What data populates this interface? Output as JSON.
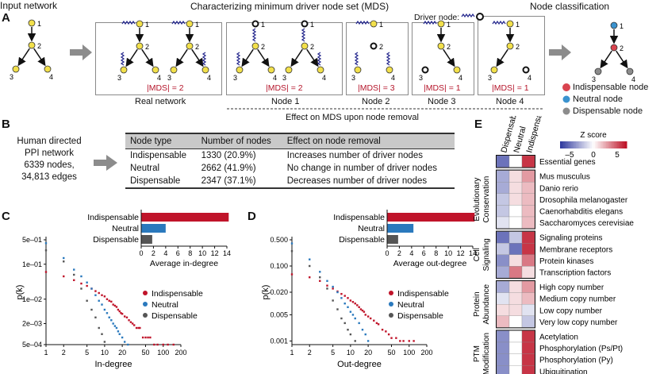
{
  "panel_a": {
    "letter": "A",
    "input_title": "Input network",
    "mds_title": "Characterizing minimum driver node set (MDS)",
    "driver_node_label": "Driver node:",
    "class_title": "Node classification",
    "node_labels": [
      "1",
      "2",
      "3",
      "4"
    ],
    "real_mds": "|MDS| = 2",
    "real_label": "Real  network",
    "removals": [
      {
        "label": "Node 1",
        "mds": "|MDS| = 2"
      },
      {
        "label": "Node 2",
        "mds": "|MDS| = 3"
      },
      {
        "label": "Node 3",
        "mds": "|MDS| = 1"
      },
      {
        "label": "Node 4",
        "mds": "|MDS| = 1"
      }
    ],
    "effect_label": "Effect on MDS upon node removal",
    "legend": [
      {
        "label": "Indispensable node",
        "color": "#d9444f"
      },
      {
        "label": "Neutral node",
        "color": "#3b93cf"
      },
      {
        "label": "Dispensable node",
        "color": "#8c8c8c"
      }
    ]
  },
  "panel_b": {
    "letter": "B",
    "network_text": [
      "Human directed",
      "PPI network",
      "6339 nodes,",
      "34,813 edges"
    ],
    "columns": [
      "Node type",
      "Number of nodes",
      "Effect on node removal"
    ],
    "rows": [
      [
        "Indispensable",
        "1330 (20.9%)",
        "Increases number of driver nodes"
      ],
      [
        "Neutral",
        "2662 (41.9%)",
        "No change in number of driver nodes"
      ],
      [
        "Dispensable",
        "2347 (37.1%)",
        "Decreases number of driver nodes"
      ]
    ]
  },
  "panel_c": {
    "letter": "C",
    "ylabel": "p(k)",
    "xlabel": "In-degree",
    "yticks": [
      "5e–01",
      "1e–01",
      "1e–02",
      "2e–03",
      "5e–04"
    ],
    "xticks": [
      "1",
      "2",
      "5",
      "10",
      "20",
      "50",
      "100",
      "200"
    ],
    "bar_xlabel": "Average in-degree",
    "bar_ticks": [
      "0",
      "2",
      "4",
      "6",
      "8",
      "10",
      "12",
      "14"
    ],
    "legend": [
      "Indispensable",
      "Neutral",
      "Dispensable"
    ]
  },
  "panel_d": {
    "letter": "D",
    "ylabel": "p(k)",
    "xlabel": "Out-degree",
    "yticks": [
      "0.500",
      "0.100",
      "0.020",
      "0.005",
      "0.001"
    ],
    "xticks": [
      "1",
      "2",
      "5",
      "10",
      "20",
      "50",
      "100",
      "200"
    ],
    "bar_xlabel": "Average out-degree",
    "bar_ticks": [
      "0",
      "2",
      "4",
      "6",
      "8",
      "10",
      "12",
      "14"
    ],
    "legend": [
      "Indispensable",
      "Neutral",
      "Dispensable"
    ]
  },
  "panel_e": {
    "letter": "E",
    "col_labels": [
      "Dispensable",
      "Neutral",
      "Indispensable"
    ],
    "zscore_title": "Z score",
    "zscore_ticks": [
      "–5",
      "0",
      "5"
    ],
    "groups": [
      {
        "label": "",
        "rows": [
          "Essential genes"
        ]
      },
      {
        "label": "Evolutionary Conservation",
        "rows": [
          "Mus musculus",
          "Danio rerio",
          "Drosophila melanogaster",
          "Caenorhabditis elegans",
          "Saccharomyces cerevisiae"
        ]
      },
      {
        "label": "Cell Signaling",
        "rows": [
          "Signaling proteins",
          "Membrane receptors",
          "Protein kinases",
          "Transcription factors"
        ]
      },
      {
        "label": "Protein Abundance",
        "rows": [
          "High copy number",
          "Medium copy number",
          "Low copy number",
          "Very low copy number"
        ]
      },
      {
        "label": "PTM Modification",
        "rows": [
          "Acetylation",
          "Phosphorylation (Ps/Pt)",
          "Phosphorylation (Py)",
          "Ubiquitination"
        ]
      }
    ]
  },
  "chart_data": [
    {
      "type": "bar",
      "title": "Average in-degree",
      "categories": [
        "Indispensable",
        "Neutral",
        "Dispensable"
      ],
      "values": [
        14.3,
        4.0,
        1.8
      ],
      "colors": [
        "#c0142a",
        "#2a79bd",
        "#555555"
      ],
      "xlim": [
        0,
        14
      ]
    },
    {
      "type": "bar",
      "title": "Average out-degree",
      "categories": [
        "Indispensable",
        "Neutral",
        "Dispensable"
      ],
      "values": [
        14.3,
        4.3,
        1.8
      ],
      "colors": [
        "#c0142a",
        "#2a79bd",
        "#555555"
      ],
      "xlim": [
        0,
        14
      ]
    },
    {
      "type": "scatter",
      "title": "In-degree distribution",
      "xlabel": "In-degree",
      "ylabel": "p(k)",
      "xscale": "log",
      "yscale": "log",
      "xlim": [
        1,
        200
      ],
      "ylim": [
        0.0005,
        0.5
      ],
      "series": [
        {
          "name": "Indispensable",
          "color": "#c0142a",
          "x": [
            1,
            2,
            3,
            4,
            5,
            6,
            7,
            8,
            9,
            10,
            11,
            12,
            13,
            14,
            15,
            16,
            17,
            18,
            19,
            20,
            22,
            24,
            26,
            28,
            30,
            32,
            35,
            38,
            40,
            45,
            50,
            55,
            60,
            70,
            80,
            100,
            120,
            150
          ],
          "y": [
            0.06,
            0.045,
            0.035,
            0.028,
            0.024,
            0.02,
            0.017,
            0.015,
            0.013,
            0.012,
            0.01,
            0.009,
            0.0085,
            0.007,
            0.0065,
            0.006,
            0.005,
            0.0045,
            0.004,
            0.0038,
            0.0032,
            0.003,
            0.0025,
            0.0022,
            0.002,
            0.0018,
            0.0015,
            0.0015,
            0.0015,
            0.0008,
            0.0008,
            0.0008,
            0.0008,
            0.0005,
            0.0005,
            0.0005,
            0.0005,
            0.0005
          ]
        },
        {
          "name": "Neutral",
          "color": "#2a79bd",
          "x": [
            1,
            2,
            3,
            4,
            5,
            6,
            7,
            8,
            9,
            10,
            11,
            12,
            13,
            14,
            15,
            16,
            17,
            18,
            20,
            22,
            25
          ],
          "y": [
            0.4,
            0.15,
            0.07,
            0.045,
            0.03,
            0.02,
            0.013,
            0.009,
            0.007,
            0.005,
            0.004,
            0.003,
            0.0025,
            0.002,
            0.0017,
            0.0015,
            0.0012,
            0.001,
            0.0008,
            0.0006,
            0.0005
          ]
        },
        {
          "name": "Dispensable",
          "color": "#555555",
          "x": [
            1,
            2,
            3,
            4,
            5,
            6,
            7,
            8,
            9,
            10
          ],
          "y": [
            0.25,
            0.12,
            0.05,
            0.02,
            0.009,
            0.005,
            0.003,
            0.0015,
            0.001,
            0.0006
          ]
        }
      ]
    },
    {
      "type": "scatter",
      "title": "Out-degree distribution",
      "xlabel": "Out-degree",
      "ylabel": "p(k)",
      "xscale": "log",
      "yscale": "log",
      "xlim": [
        1,
        200
      ],
      "ylim": [
        0.0008,
        0.5
      ],
      "series": [
        {
          "name": "Indispensable",
          "color": "#c0142a",
          "x": [
            1,
            2,
            3,
            4,
            5,
            6,
            7,
            8,
            9,
            10,
            11,
            12,
            13,
            14,
            15,
            16,
            17,
            18,
            20,
            22,
            25,
            28,
            30,
            35,
            40,
            45,
            50,
            60,
            70,
            80,
            100,
            120
          ],
          "y": [
            0.06,
            0.05,
            0.04,
            0.03,
            0.025,
            0.021,
            0.018,
            0.016,
            0.014,
            0.012,
            0.011,
            0.01,
            0.009,
            0.008,
            0.007,
            0.0065,
            0.006,
            0.005,
            0.0045,
            0.004,
            0.0035,
            0.003,
            0.0028,
            0.002,
            0.0018,
            0.0015,
            0.0012,
            0.0012,
            0.001,
            0.001,
            0.001,
            0.001
          ]
        },
        {
          "name": "Neutral",
          "color": "#2a79bd",
          "x": [
            1,
            2,
            3,
            4,
            5,
            6,
            7,
            8,
            9,
            10,
            11,
            12,
            14,
            16,
            18,
            20
          ],
          "y": [
            0.4,
            0.15,
            0.07,
            0.04,
            0.028,
            0.02,
            0.014,
            0.01,
            0.008,
            0.006,
            0.005,
            0.004,
            0.003,
            0.002,
            0.0015,
            0.001
          ]
        },
        {
          "name": "Dispensable",
          "color": "#555555",
          "x": [
            1,
            2,
            3,
            4,
            5,
            6,
            7,
            8,
            9,
            10,
            12
          ],
          "y": [
            0.25,
            0.1,
            0.05,
            0.025,
            0.012,
            0.007,
            0.004,
            0.003,
            0.002,
            0.0015,
            0.001
          ]
        }
      ]
    },
    {
      "type": "heatmap",
      "title": "Z score",
      "columns": [
        "Dispensable",
        "Neutral",
        "Indispensable"
      ],
      "zlim": [
        -7,
        7
      ],
      "rows": [
        {
          "label": "Essential genes",
          "values": [
            -5,
            0,
            6
          ]
        },
        {
          "label": "Mus musculus",
          "values": [
            -3,
            1,
            3
          ]
        },
        {
          "label": "Danio rerio",
          "values": [
            -3,
            1,
            2
          ]
        },
        {
          "label": "Drosophila melanogaster",
          "values": [
            -2,
            1,
            2
          ]
        },
        {
          "label": "Caenorhabditis elegans",
          "values": [
            -2,
            0,
            2
          ]
        },
        {
          "label": "Saccharomyces cerevisiae",
          "values": [
            -1,
            0,
            2
          ]
        },
        {
          "label": "Signaling proteins",
          "values": [
            -5,
            -2,
            6
          ]
        },
        {
          "label": "Membrane receptors",
          "values": [
            -2,
            -5,
            6
          ]
        },
        {
          "label": "Protein kinases",
          "values": [
            -4,
            1,
            4
          ]
        },
        {
          "label": "Transcription factors",
          "values": [
            -3,
            4,
            1
          ]
        },
        {
          "label": "High copy number",
          "values": [
            -3,
            1,
            3
          ]
        },
        {
          "label": "Medium copy number",
          "values": [
            -1,
            1,
            2
          ]
        },
        {
          "label": "Low copy number",
          "values": [
            1,
            1,
            -1
          ]
        },
        {
          "label": "Very low copy number",
          "values": [
            2,
            0,
            -2
          ]
        },
        {
          "label": "Acetylation",
          "values": [
            -4,
            0,
            6
          ]
        },
        {
          "label": "Phosphorylation (Ps/Pt)",
          "values": [
            -4,
            0,
            6
          ]
        },
        {
          "label": "Phosphorylation (Py)",
          "values": [
            -4,
            0,
            6
          ]
        },
        {
          "label": "Ubiquitination",
          "values": [
            -4,
            0,
            6
          ]
        }
      ]
    }
  ]
}
